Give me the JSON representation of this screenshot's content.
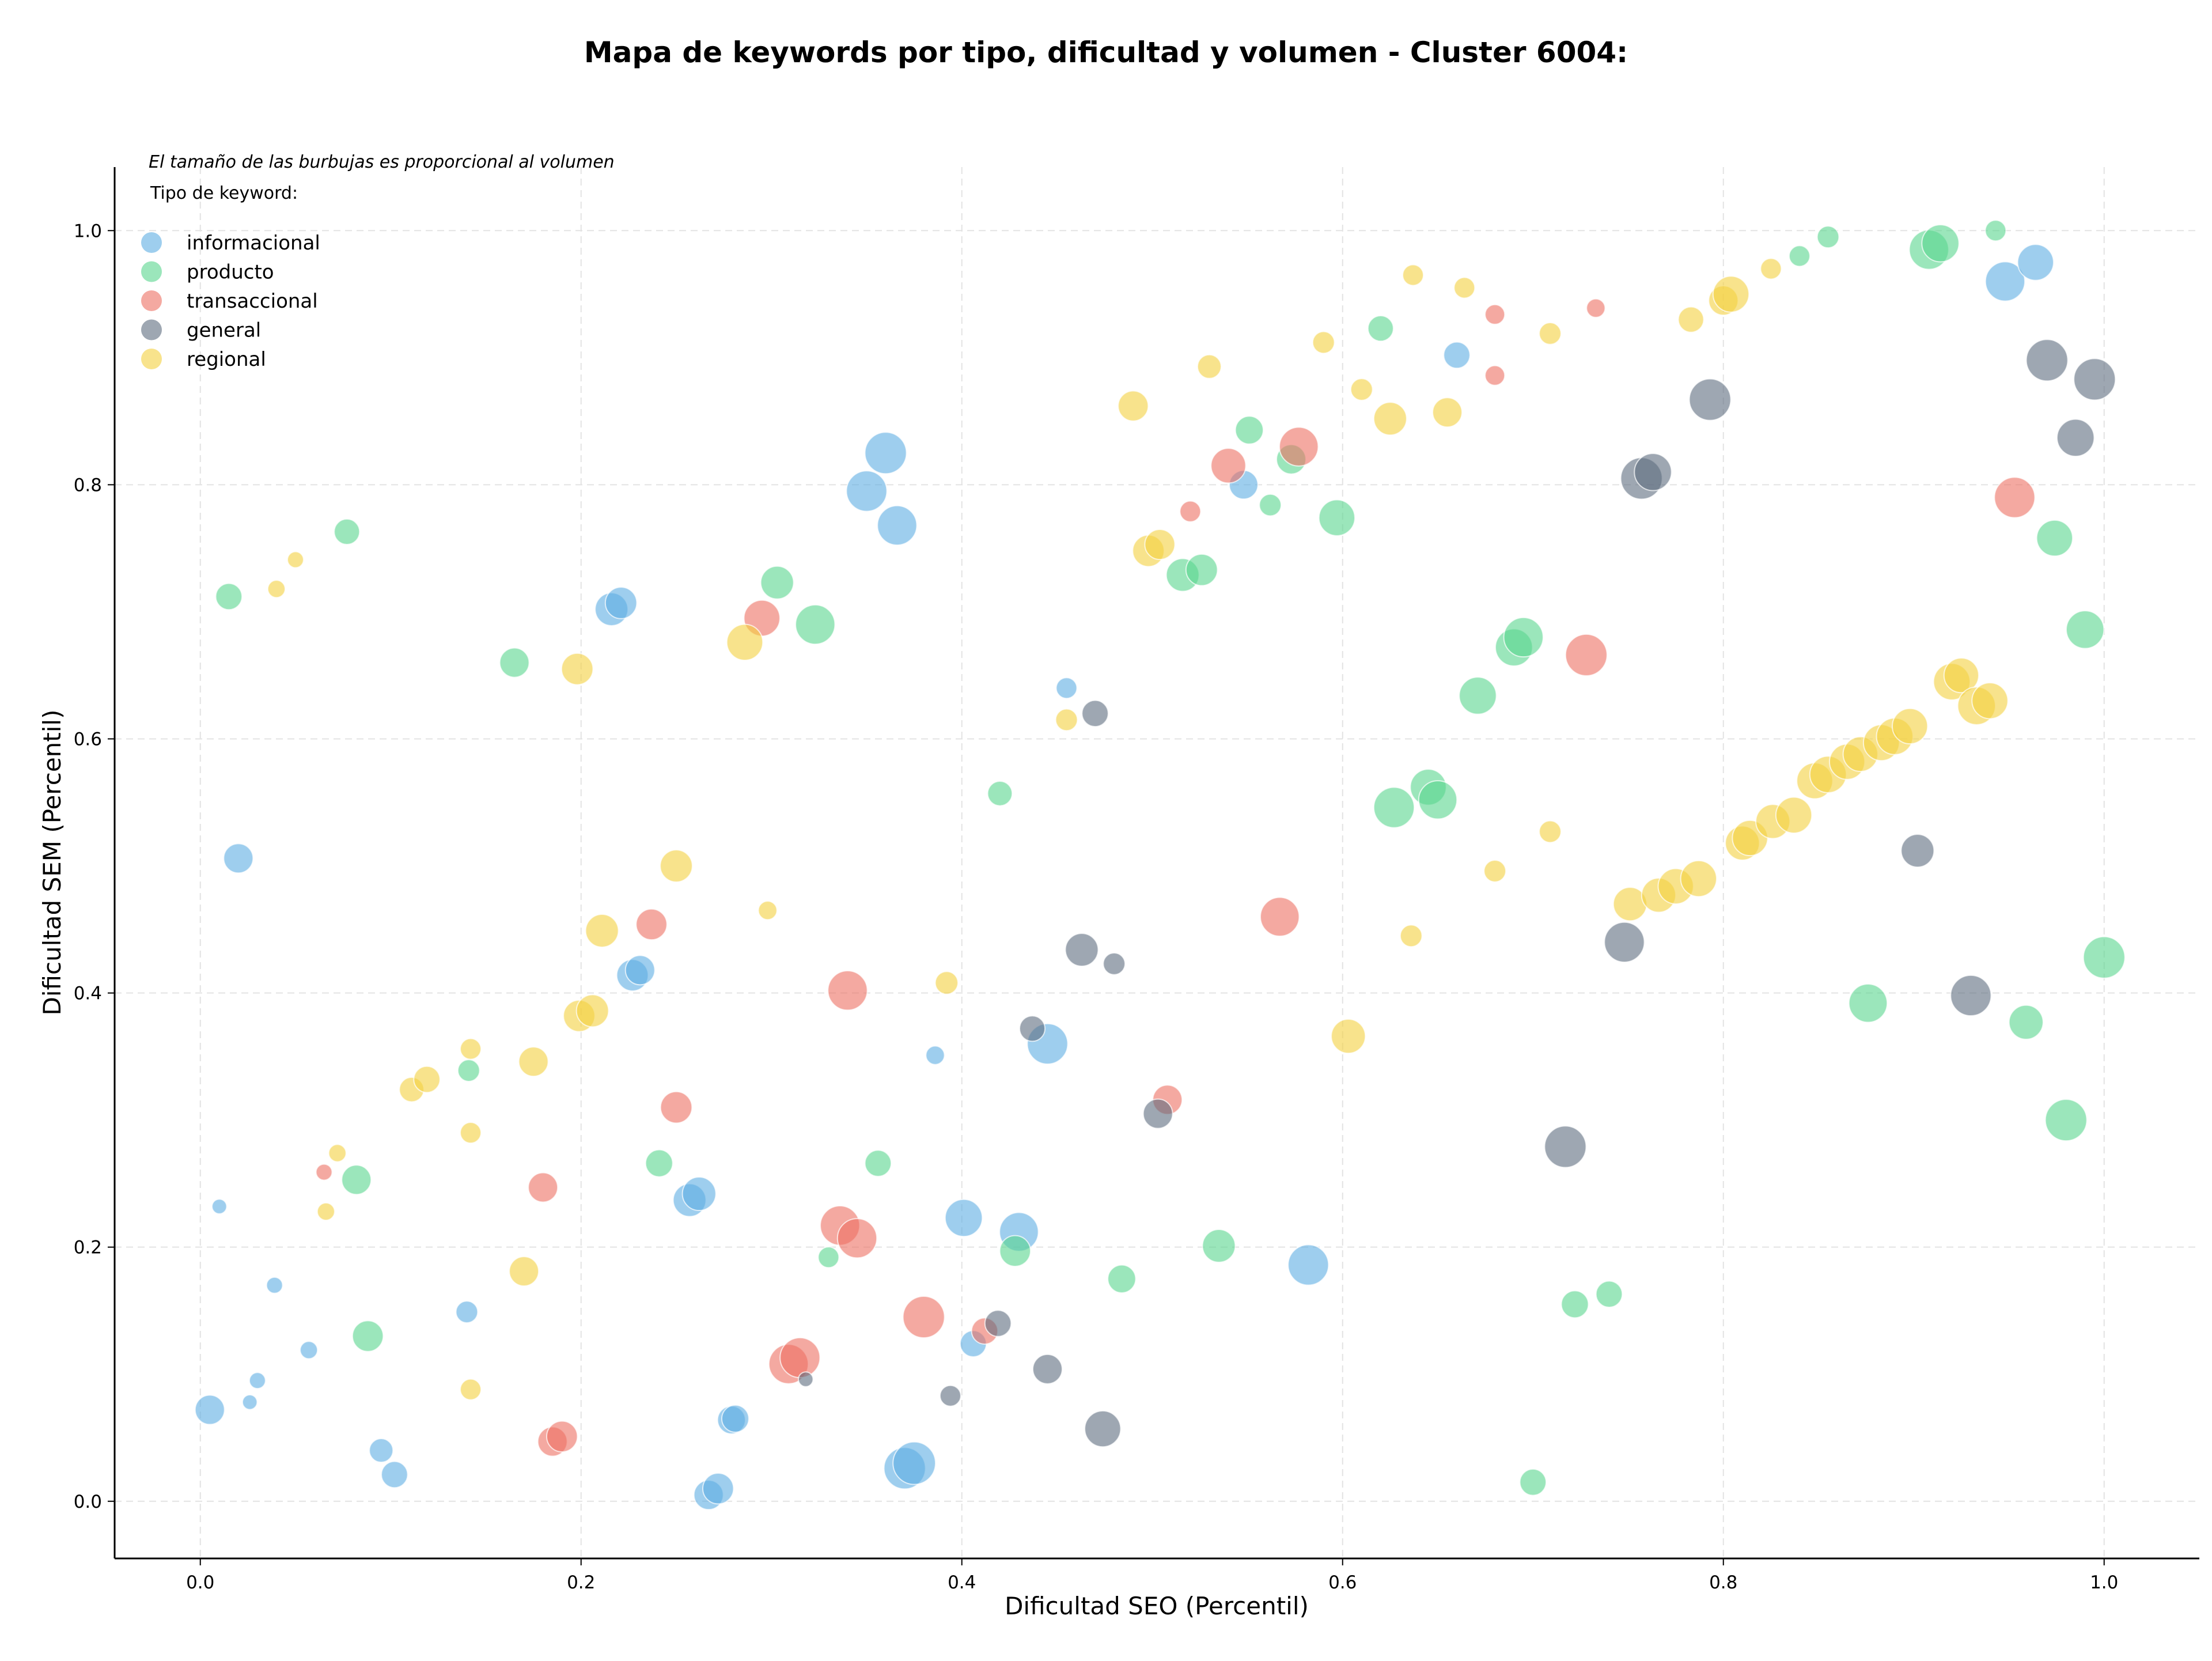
{
  "chart_data": {
    "type": "scatter",
    "title": "Mapa de keywords por tipo, dificultad y volumen - Cluster 6004:",
    "xlabel": "Dificultad SEO (Percentil)",
    "ylabel": "Dificultad SEM (Percentil)",
    "xlim": [
      -0.045,
      1.05
    ],
    "ylim": [
      -0.045,
      1.05
    ],
    "xticks": [
      "0.0",
      "0.2",
      "0.4",
      "0.6",
      "0.8",
      "1.0"
    ],
    "yticks": [
      "0.0",
      "0.2",
      "0.4",
      "0.6",
      "0.8",
      "1.0"
    ],
    "grid": true,
    "note": "El tamaño de las burbujas es proporcional al volumen",
    "legend_title": "Tipo de keyword:",
    "legend_position": "top-left",
    "series": [
      {
        "name": "informacional",
        "color": "#5dade2",
        "points": [
          [
            0.005,
            0.072,
            2
          ],
          [
            0.01,
            0.232,
            0.5
          ],
          [
            0.02,
            0.506,
            2
          ],
          [
            0.026,
            0.078,
            0.5
          ],
          [
            0.03,
            0.095,
            0.6
          ],
          [
            0.039,
            0.17,
            0.6
          ],
          [
            0.057,
            0.119,
            0.7
          ],
          [
            0.095,
            0.04,
            1.3
          ],
          [
            0.102,
            0.021,
            1.6
          ],
          [
            0.14,
            0.149,
            1.1
          ],
          [
            0.216,
            0.702,
            2.5
          ],
          [
            0.221,
            0.707,
            2.3
          ],
          [
            0.227,
            0.414,
            2.3
          ],
          [
            0.231,
            0.418,
            2
          ],
          [
            0.257,
            0.237,
            2.5
          ],
          [
            0.262,
            0.242,
            2.6
          ],
          [
            0.267,
            0.005,
            2
          ],
          [
            0.272,
            0.01,
            2.2
          ],
          [
            0.279,
            0.064,
            1.8
          ],
          [
            0.281,
            0.065,
            1.7
          ],
          [
            0.35,
            0.795,
            3.8
          ],
          [
            0.36,
            0.825,
            4
          ],
          [
            0.366,
            0.768,
            3.6
          ],
          [
            0.37,
            0.026,
            4
          ],
          [
            0.375,
            0.03,
            4.2
          ],
          [
            0.386,
            0.351,
            0.8
          ],
          [
            0.401,
            0.223,
            3.2
          ],
          [
            0.406,
            0.124,
            1.6
          ],
          [
            0.43,
            0.212,
            3.5
          ],
          [
            0.445,
            0.36,
            3.8
          ],
          [
            0.455,
            0.64,
            1
          ],
          [
            0.548,
            0.8,
            1.9
          ],
          [
            0.582,
            0.186,
            3.8
          ],
          [
            0.66,
            0.902,
            1.6
          ],
          [
            0.948,
            0.96,
            3.6
          ],
          [
            0.964,
            0.975,
            3
          ]
        ]
      },
      {
        "name": "producto",
        "color": "#58d68d",
        "points": [
          [
            0.015,
            0.712,
            1.6
          ],
          [
            0.077,
            0.763,
            1.5
          ],
          [
            0.082,
            0.253,
            2
          ],
          [
            0.088,
            0.13,
            2.2
          ],
          [
            0.141,
            0.339,
            1.1
          ],
          [
            0.165,
            0.66,
            2
          ],
          [
            0.241,
            0.266,
            1.7
          ],
          [
            0.303,
            0.723,
            2.5
          ],
          [
            0.323,
            0.69,
            3.6
          ],
          [
            0.33,
            0.192,
            1
          ],
          [
            0.356,
            0.266,
            1.6
          ],
          [
            0.42,
            0.557,
            1.4
          ],
          [
            0.428,
            0.197,
            2.2
          ],
          [
            0.484,
            0.175,
            1.8
          ],
          [
            0.516,
            0.729,
            2.5
          ],
          [
            0.526,
            0.733,
            2.3
          ],
          [
            0.535,
            0.201,
            2.5
          ],
          [
            0.551,
            0.843,
            1.8
          ],
          [
            0.562,
            0.784,
            1.1
          ],
          [
            0.573,
            0.82,
            2
          ],
          [
            0.597,
            0.774,
            3
          ],
          [
            0.62,
            0.923,
            1.5
          ],
          [
            0.627,
            0.546,
            3.8
          ],
          [
            0.645,
            0.562,
            3
          ],
          [
            0.65,
            0.552,
            3.4
          ],
          [
            0.671,
            0.634,
            3.2
          ],
          [
            0.69,
            0.672,
            3.2
          ],
          [
            0.695,
            0.68,
            3.6
          ],
          [
            0.7,
            0.015,
            1.6
          ],
          [
            0.722,
            0.155,
            1.7
          ],
          [
            0.74,
            0.163,
            1.6
          ],
          [
            0.84,
            0.98,
            1
          ],
          [
            0.855,
            0.995,
            1.1
          ],
          [
            0.876,
            0.392,
            3.4
          ],
          [
            0.908,
            0.985,
            3.6
          ],
          [
            0.914,
            0.99,
            3.2
          ],
          [
            0.943,
            1.0,
            1
          ],
          [
            0.959,
            0.377,
            2.7
          ],
          [
            0.974,
            0.758,
            3
          ],
          [
            0.98,
            0.3,
            4
          ],
          [
            0.99,
            0.686,
            3.3
          ],
          [
            1.0,
            0.428,
            4
          ]
        ]
      },
      {
        "name": "transaccional",
        "color": "#ec7063",
        "points": [
          [
            0.065,
            0.259,
            0.6
          ],
          [
            0.18,
            0.247,
            2
          ],
          [
            0.185,
            0.047,
            2
          ],
          [
            0.19,
            0.051,
            2.2
          ],
          [
            0.237,
            0.454,
            2.2
          ],
          [
            0.25,
            0.31,
            2.3
          ],
          [
            0.295,
            0.695,
            3
          ],
          [
            0.309,
            0.108,
            3.6
          ],
          [
            0.315,
            0.113,
            3.7
          ],
          [
            0.336,
            0.217,
            3.6
          ],
          [
            0.34,
            0.402,
            3.6
          ],
          [
            0.345,
            0.207,
            3.6
          ],
          [
            0.38,
            0.145,
            4
          ],
          [
            0.412,
            0.134,
            1.6
          ],
          [
            0.508,
            0.316,
            2
          ],
          [
            0.52,
            0.779,
            1
          ],
          [
            0.54,
            0.815,
            2.8
          ],
          [
            0.567,
            0.46,
            3.5
          ],
          [
            0.577,
            0.83,
            3.5
          ],
          [
            0.68,
            0.934,
            0.9
          ],
          [
            0.68,
            0.886,
            0.9
          ],
          [
            0.728,
            0.666,
            4
          ],
          [
            0.733,
            0.939,
            0.8
          ],
          [
            0.953,
            0.79,
            3.8
          ]
        ]
      },
      {
        "name": "general",
        "color": "#5d6d7e",
        "points": [
          [
            0.318,
            0.096,
            0.5
          ],
          [
            0.394,
            0.083,
            1
          ],
          [
            0.419,
            0.14,
            1.6
          ],
          [
            0.437,
            0.372,
            1.5
          ],
          [
            0.445,
            0.104,
            2
          ],
          [
            0.463,
            0.434,
            2.5
          ],
          [
            0.47,
            0.62,
            1.6
          ],
          [
            0.474,
            0.057,
            3
          ],
          [
            0.48,
            0.423,
            1.1
          ],
          [
            0.503,
            0.305,
            2
          ],
          [
            0.717,
            0.279,
            4
          ],
          [
            0.748,
            0.44,
            3.7
          ],
          [
            0.757,
            0.805,
            4
          ],
          [
            0.763,
            0.81,
            3.2
          ],
          [
            0.793,
            0.867,
            4
          ],
          [
            0.902,
            0.512,
            2.5
          ],
          [
            0.93,
            0.398,
            3.8
          ],
          [
            0.97,
            0.898,
            4
          ],
          [
            0.985,
            0.837,
            3.2
          ],
          [
            0.995,
            0.883,
            4
          ]
        ]
      },
      {
        "name": "regional",
        "color": "#f4d03f",
        "points": [
          [
            0.04,
            0.718,
            0.7
          ],
          [
            0.05,
            0.741,
            0.6
          ],
          [
            0.066,
            0.228,
            0.7
          ],
          [
            0.072,
            0.274,
            0.7
          ],
          [
            0.111,
            0.324,
            1.4
          ],
          [
            0.119,
            0.332,
            1.6
          ],
          [
            0.142,
            0.356,
            1
          ],
          [
            0.142,
            0.29,
            1
          ],
          [
            0.142,
            0.088,
            1
          ],
          [
            0.17,
            0.181,
            2
          ],
          [
            0.175,
            0.346,
            2
          ],
          [
            0.199,
            0.382,
            2.3
          ],
          [
            0.198,
            0.655,
            2.3
          ],
          [
            0.206,
            0.386,
            2.4
          ],
          [
            0.211,
            0.449,
            2.5
          ],
          [
            0.25,
            0.5,
            2.4
          ],
          [
            0.286,
            0.676,
            3
          ],
          [
            0.298,
            0.465,
            0.8
          ],
          [
            0.392,
            0.408,
            1.2
          ],
          [
            0.455,
            0.615,
            1.1
          ],
          [
            0.49,
            0.862,
            2.1
          ],
          [
            0.498,
            0.748,
            2.3
          ],
          [
            0.504,
            0.753,
            2.1
          ],
          [
            0.53,
            0.893,
            1.3
          ],
          [
            0.59,
            0.912,
            1.1
          ],
          [
            0.603,
            0.366,
            2.7
          ],
          [
            0.61,
            0.875,
            1.1
          ],
          [
            0.625,
            0.852,
            2.5
          ],
          [
            0.636,
            0.445,
            1.1
          ],
          [
            0.637,
            0.965,
            1
          ],
          [
            0.655,
            0.857,
            2
          ],
          [
            0.664,
            0.955,
            1
          ],
          [
            0.68,
            0.496,
            1.1
          ],
          [
            0.709,
            0.919,
            1.1
          ],
          [
            0.709,
            0.527,
            1.1
          ],
          [
            0.751,
            0.47,
            2.6
          ],
          [
            0.766,
            0.477,
            2.7
          ],
          [
            0.775,
            0.484,
            2.9
          ],
          [
            0.783,
            0.93,
            1.5
          ],
          [
            0.787,
            0.49,
            3
          ],
          [
            0.8,
            0.945,
            2
          ],
          [
            0.804,
            0.95,
            3
          ],
          [
            0.81,
            0.518,
            2.7
          ],
          [
            0.814,
            0.522,
            2.9
          ],
          [
            0.825,
            0.97,
            1
          ],
          [
            0.826,
            0.535,
            2.7
          ],
          [
            0.837,
            0.54,
            3
          ],
          [
            0.848,
            0.567,
            3
          ],
          [
            0.855,
            0.572,
            3.1
          ],
          [
            0.865,
            0.582,
            2.9
          ],
          [
            0.872,
            0.588,
            2.8
          ],
          [
            0.883,
            0.597,
            3
          ],
          [
            0.89,
            0.602,
            3.1
          ],
          [
            0.898,
            0.61,
            2.9
          ],
          [
            0.92,
            0.645,
            3.1
          ],
          [
            0.925,
            0.65,
            2.8
          ],
          [
            0.933,
            0.626,
            3.3
          ],
          [
            0.94,
            0.63,
            3
          ]
        ]
      }
    ]
  }
}
